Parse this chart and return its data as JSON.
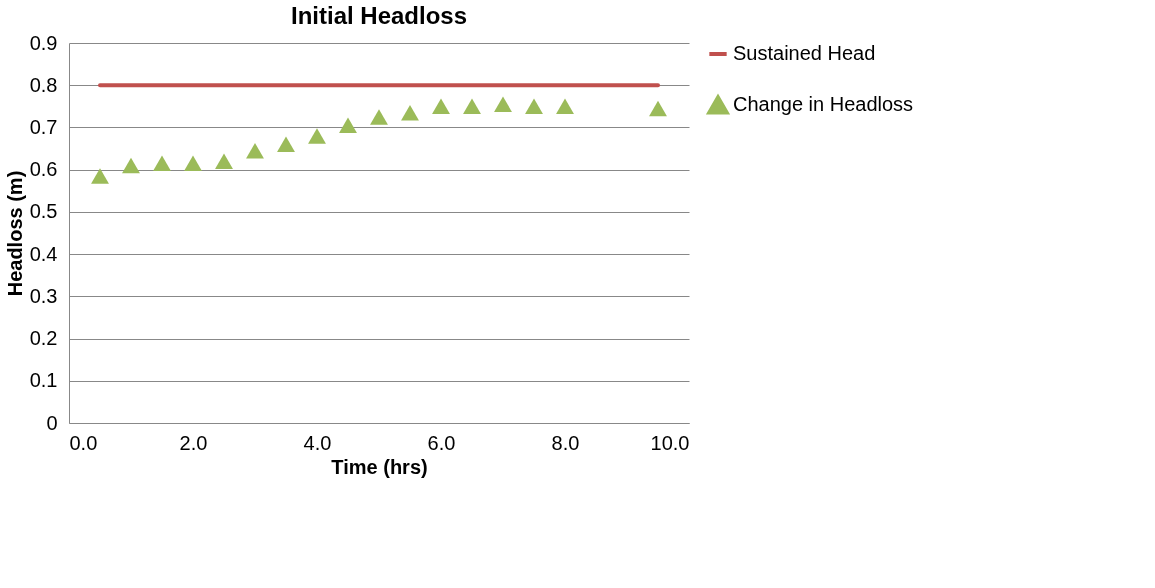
{
  "chart_data": {
    "type": "scatter",
    "title": "Initial Headloss",
    "xlabel": "Time (hrs)",
    "ylabel": "Headloss (m)",
    "xlim": [
      0,
      10
    ],
    "xticks": [
      {
        "value": 0,
        "label": "0.0"
      },
      {
        "value": 2,
        "label": "2.0"
      },
      {
        "value": 4,
        "label": "4.0"
      },
      {
        "value": 6,
        "label": "6.0"
      },
      {
        "value": 8,
        "label": "8.0"
      },
      {
        "value": 10,
        "label": "10.0"
      }
    ],
    "ylim": [
      0,
      0.9
    ],
    "yticks": [
      0,
      0.1,
      0.2,
      0.3,
      0.4,
      0.5,
      0.6,
      0.7,
      0.8,
      0.9
    ],
    "grid": "y",
    "legend": "right",
    "series": [
      {
        "name": "Sustained Head",
        "type": "line",
        "color": "#c0504d",
        "x": [
          0.5,
          9.5
        ],
        "values": [
          0.8,
          0.8
        ]
      },
      {
        "name": "Change in Headloss",
        "marker": "triangle",
        "color": "#9bbb59",
        "x": [
          0.5,
          1,
          1.5,
          2,
          2.5,
          3,
          3.5,
          4,
          4.5,
          5,
          5.5,
          6,
          6.5,
          7,
          7.5,
          8,
          9.5
        ],
        "values": [
          0.585,
          0.61,
          0.615,
          0.615,
          0.62,
          0.645,
          0.66,
          0.68,
          0.705,
          0.725,
          0.735,
          0.75,
          0.75,
          0.755,
          0.75,
          0.75,
          0.745
        ]
      }
    ]
  }
}
